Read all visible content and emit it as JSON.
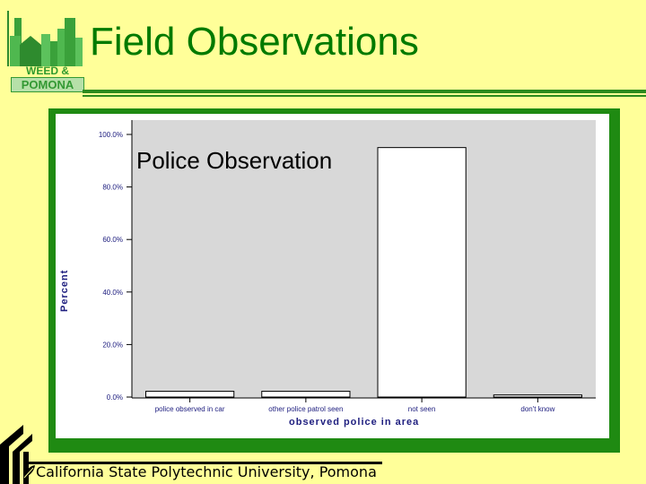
{
  "header": {
    "title": "Field Observations",
    "logo_line1": "WEED & SEED",
    "logo_line2": "POMONA"
  },
  "footer": {
    "text": "California State Polytechnic University, Pomona"
  },
  "colors": {
    "background": "#ffff99",
    "title": "#007a00",
    "frame": "#1f8a12",
    "plot_bg": "#d8d8d8",
    "axis_text": "#202080"
  },
  "overlay_title": "Police Observation",
  "chart_data": {
    "type": "bar",
    "title": "Police Observation",
    "xlabel": "observed police in area",
    "ylabel": "Percent",
    "categories": [
      "police observed in car",
      "other police patrol seen",
      "not seen",
      "don't know"
    ],
    "values": [
      2.2,
      2.2,
      95.0,
      0.8
    ],
    "ylim": [
      0,
      100
    ],
    "yticks": [
      "0.0%",
      "20.0%",
      "40.0%",
      "60.0%",
      "80.0%",
      "100.0%"
    ],
    "ytick_values": [
      0,
      20,
      40,
      60,
      80,
      100
    ],
    "grid": false,
    "legend": "none"
  }
}
